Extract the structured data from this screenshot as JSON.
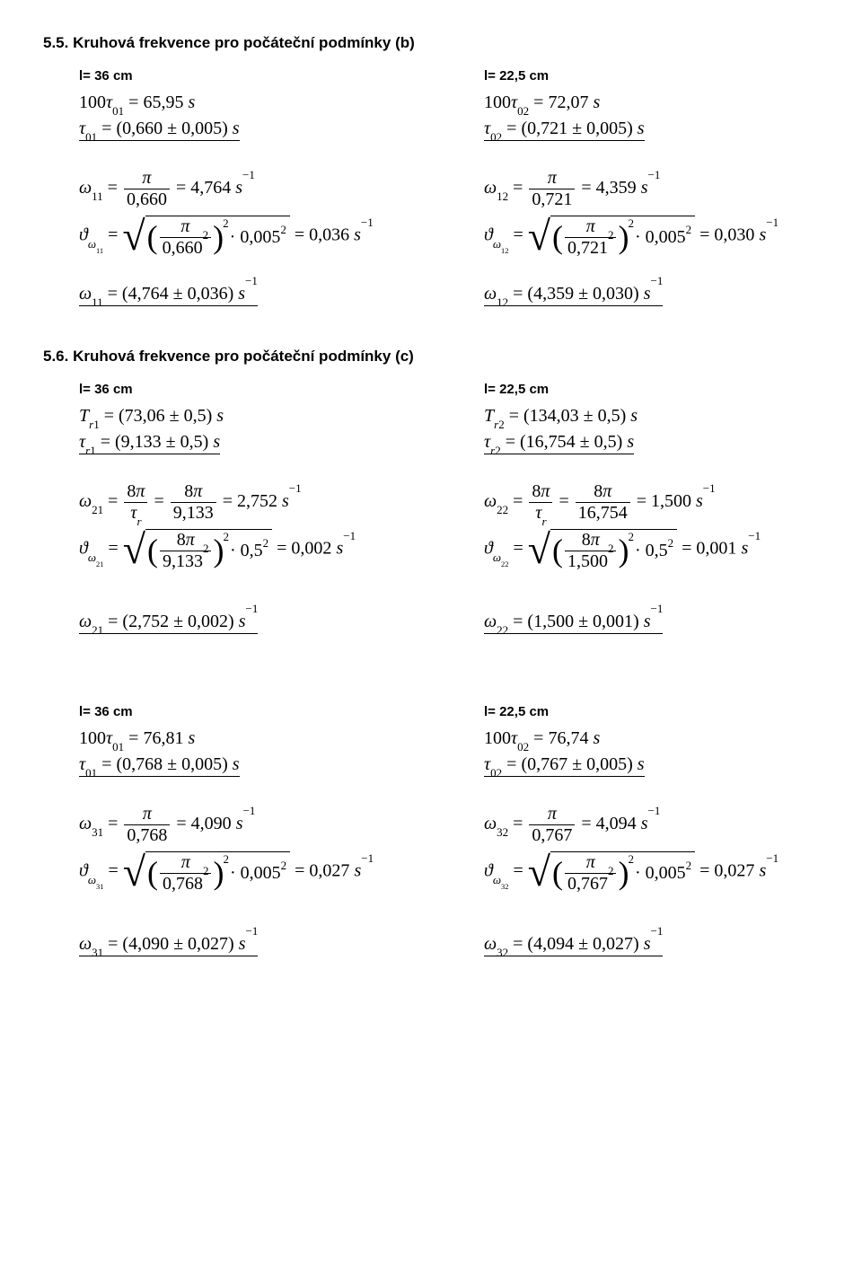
{
  "section55": {
    "title": "5.5. Kruhová frekvence pro počáteční podmínky (b)",
    "left_head": "l= 36 cm",
    "right_head": "l= 22,5 cm",
    "left": {
      "tau100": "100τ₀₁ = 65,95 s",
      "tau": "τ₀₁ = (0,660 ± 0,005) s",
      "omega_num": "π",
      "omega_den": "0,660",
      "omega_val": "= 4,764 s⁻¹",
      "theta_num": "π",
      "theta_den": "0,660²",
      "theta_mult": "· 0,005²",
      "theta_val": "= 0,036 s⁻¹",
      "result": "ω₁₁ = (4,764 ± 0,036) s⁻¹"
    },
    "right": {
      "tau100": "100τ₀₂ = 72,07 s",
      "tau": "τ₀₂ = (0,721 ± 0,005) s",
      "omega_num": "π",
      "omega_den": "0,721",
      "omega_val": "= 4,359 s⁻¹",
      "theta_num": "π",
      "theta_den": "0,721²",
      "theta_mult": "· 0,005²",
      "theta_val": "= 0,030 s⁻¹",
      "result": "ω₁₂ = (4,359 ± 0,030) s⁻¹"
    }
  },
  "section56": {
    "title": "5.6. Kruhová frekvence pro počáteční podmínky (c)",
    "left_head": "l= 36 cm",
    "right_head": "l= 22,5 cm",
    "block1": {
      "left": {
        "T": "Tᵣ₁ = (73,06 ± 0,5) s",
        "tau": "τᵣ₁ = (9,133 ± 0,5) s",
        "omega_num1": "8π",
        "omega_den1": "τᵣ",
        "omega_num2": "8π",
        "omega_den2": "9,133",
        "omega_val": "= 2,752 s⁻¹",
        "theta_num": "8π",
        "theta_den": "9,133²",
        "theta_mult": "· 0,5²",
        "theta_val": "= 0,002 s⁻¹",
        "result": "ω₂₁ = (2,752 ± 0,002) s⁻¹"
      },
      "right": {
        "T": "Tᵣ₂ = (134,03 ± 0,5) s",
        "tau": "τᵣ₂ = (16,754 ± 0,5) s",
        "omega_num1": "8π",
        "omega_den1": "τᵣ",
        "omega_num2": "8π",
        "omega_den2": "16,754",
        "omega_val": "= 1,500 s⁻¹",
        "theta_num": "8π",
        "theta_den": "1,500²",
        "theta_mult": "· 0,5²",
        "theta_val": "= 0,001 s⁻¹",
        "result": "ω₂₂ = (1,500 ± 0,001) s⁻¹"
      }
    },
    "block2": {
      "left_head": "l= 36 cm",
      "right_head": "l= 22,5 cm",
      "left": {
        "tau100": "100τ₀₁ = 76,81 s",
        "tau": "τ₀₁ = (0,768 ± 0,005) s",
        "omega_num": "π",
        "omega_den": "0,768",
        "omega_val": "= 4,090 s⁻¹",
        "theta_num": "π",
        "theta_den": "0,768²",
        "theta_mult": "· 0,005²",
        "theta_val": "= 0,027 s⁻¹",
        "result": "ω₃₁ = (4,090 ± 0,027) s⁻¹"
      },
      "right": {
        "tau100": "100τ₀₂ = 76,74 s",
        "tau": "τ₀₂ = (0,767 ± 0,005) s",
        "omega_num": "π",
        "omega_den": "0,767",
        "omega_val": "= 4,094 s⁻¹",
        "theta_num": "π",
        "theta_den": "0,767²",
        "theta_mult": "· 0,005²",
        "theta_val": "= 0,027 s⁻¹",
        "result": "ω₃₂ = (4,094 ± 0,027) s⁻¹"
      }
    }
  }
}
